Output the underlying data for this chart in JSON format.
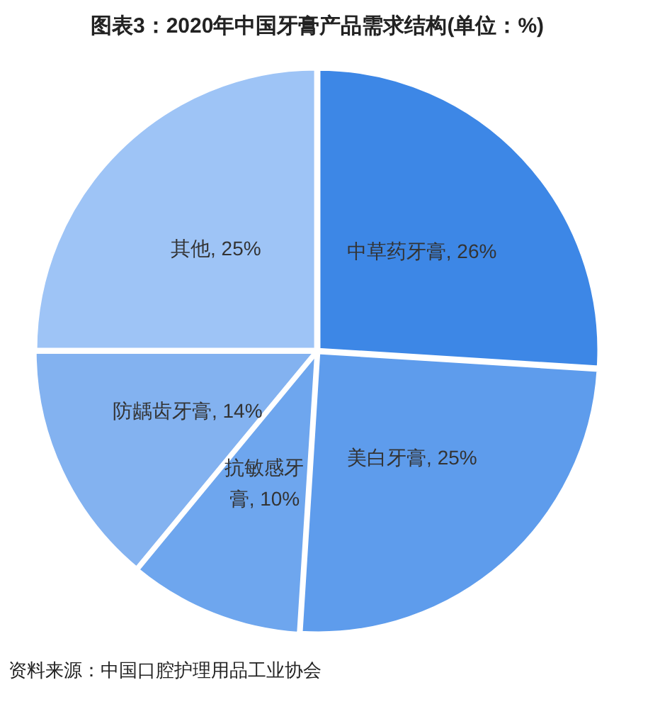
{
  "chart_data": {
    "type": "pie",
    "title": "图表3：2020年中国牙膏产品需求结构(单位：%)",
    "categories": [
      "中草药牙膏",
      "美白牙膏",
      "抗敏感牙膏",
      "防龋齿牙膏",
      "其他"
    ],
    "values": [
      26,
      25,
      10,
      14,
      25
    ],
    "value_labels": [
      "26%",
      "25%",
      "10%",
      "14%",
      "25%"
    ],
    "colors": [
      "#3d87e6",
      "#5e9cec",
      "#6ea6ee",
      "#83b2f0",
      "#9ec4f6"
    ],
    "legend": false,
    "annotations": [
      "资料来源：中国口腔护理用品工业协会"
    ]
  }
}
